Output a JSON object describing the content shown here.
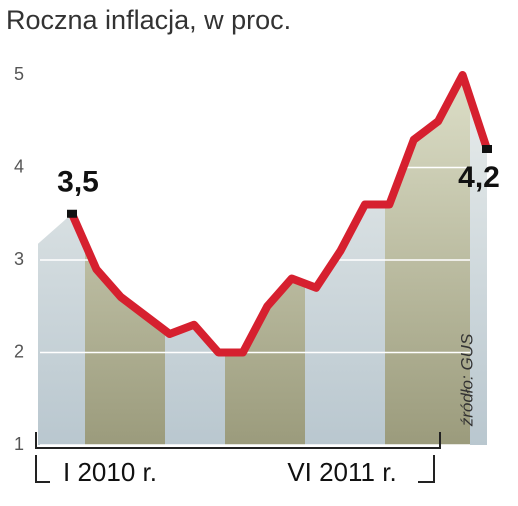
{
  "chart_data": {
    "type": "line",
    "title": "Roczna inflacja, w proc.",
    "categories": [
      "I 2010 r.",
      null,
      null,
      null,
      null,
      null,
      null,
      null,
      null,
      null,
      null,
      null,
      null,
      null,
      null,
      null,
      null,
      "VI 2011 r."
    ],
    "series": [
      {
        "name": "Inflacja",
        "color": "#d6202f",
        "values": [
          3.5,
          2.9,
          2.6,
          2.4,
          2.2,
          2.3,
          2.0,
          2.0,
          2.5,
          2.8,
          2.7,
          3.1,
          3.6,
          3.6,
          4.3,
          4.5,
          5.0,
          4.2
        ],
        "value_labels": [
          "3,5",
          null,
          null,
          null,
          null,
          null,
          null,
          null,
          null,
          null,
          null,
          null,
          null,
          null,
          null,
          null,
          null,
          "4,2"
        ]
      }
    ],
    "ylim": [
      1,
      5
    ],
    "yticks": [
      1,
      2,
      3,
      4,
      5
    ],
    "grid": true,
    "source": "źródło: GUS"
  }
}
